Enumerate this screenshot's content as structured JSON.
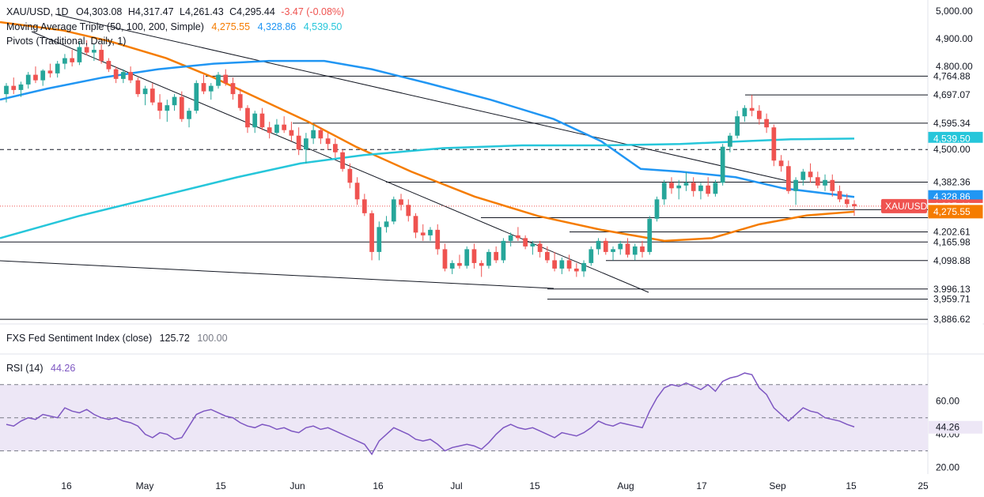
{
  "legend": {
    "symbol": "XAU/USD, 1D",
    "ohlc": {
      "O": "O4,303.08",
      "H": "H4,317.47",
      "L": "L4,261.43",
      "C": "C4,295.44",
      "change": "-3.47 (-0.08%)"
    },
    "ma_title": "Moving Average Triple (50, 100, 200, Simple)",
    "ma_values": [
      "4,275.55",
      "4,328.86",
      "4,539.50"
    ],
    "pivots": "Pivots (Traditional, Daily, 1)",
    "sentiment": "FXS Fed Sentiment Index (close)",
    "sentiment_values": [
      "125.72",
      "100.00"
    ],
    "rsi": "RSI (14)",
    "rsi_value": "44.26"
  },
  "colors": {
    "up": "#26a69a",
    "down": "#ef5350",
    "ma50": "#f57c00",
    "ma100": "#2196f3",
    "ma200": "#26c6da",
    "rsi": "#7e57c2",
    "rsi_band": "#ede7f6",
    "line": "#131722"
  },
  "price_axis": {
    "ticks": [
      "5,000.00",
      "4,900.00",
      "4,800.00"
    ],
    "levels": [
      {
        "label": "4,764.88",
        "value": 4764.88,
        "style": "box"
      },
      {
        "label": "4,697.07",
        "value": 4697.07,
        "style": "box"
      },
      {
        "label": "4,595.34",
        "value": 4595.34,
        "style": "box"
      },
      {
        "label": "4,539.50",
        "value": 4539.5,
        "style": "ma200"
      },
      {
        "label": "4,500.00",
        "value": 4500.0,
        "style": "box"
      },
      {
        "label": "4,382.36",
        "value": 4382.36,
        "style": "box"
      },
      {
        "label": "4,328.86",
        "value": 4328.86,
        "style": "ma100"
      },
      {
        "label": "4,295.44",
        "value": 4295.44,
        "style": "price"
      },
      {
        "label": "4,282.69",
        "value": 4282.69,
        "style": "box"
      },
      {
        "label": "4,275.55",
        "value": 4275.55,
        "style": "ma50"
      },
      {
        "label": "4,202.61",
        "value": 4202.61,
        "style": "box"
      },
      {
        "label": "4,165.98",
        "value": 4165.98,
        "style": "box"
      },
      {
        "label": "4,098.88",
        "value": 4098.88,
        "style": "box"
      },
      {
        "label": "3,996.13",
        "value": 3996.13,
        "style": "box"
      },
      {
        "label": "3,959.71",
        "value": 3959.71,
        "style": "box"
      },
      {
        "label": "3,886.62",
        "value": 3886.62,
        "style": "box"
      }
    ],
    "price_tag": "XAU/USD"
  },
  "rsi_axis": {
    "ticks": [
      "60.00",
      "40.00",
      "20.00"
    ],
    "value_tag": "44.26"
  },
  "time_axis": [
    "16",
    "May",
    "15",
    "Jun",
    "16",
    "Jul",
    "15",
    "Aug",
    "17",
    "Sep",
    "15",
    "25"
  ],
  "chart_data": {
    "type": "candlestick",
    "symbol": "XAU/USD",
    "timeframe": "1D",
    "ylim": [
      3870,
      5040
    ],
    "last": {
      "open": 4303.08,
      "high": 4317.47,
      "low": 4261.43,
      "close": 4295.44,
      "change": -3.47,
      "change_pct": -0.08
    },
    "moving_averages": [
      {
        "name": "50",
        "last": 4275.55
      },
      {
        "name": "100",
        "last": 4328.86
      },
      {
        "name": "200",
        "last": 4539.5
      }
    ],
    "horizontal_levels": [
      4764.88,
      4697.07,
      4595.34,
      4500.0,
      4382.36,
      4282.69,
      4202.61,
      4165.98,
      4098.88,
      3996.13,
      3959.71,
      3886.62
    ],
    "ohlc": [
      [
        4700,
        4740,
        4670,
        4730
      ],
      [
        4730,
        4760,
        4700,
        4715
      ],
      [
        4715,
        4745,
        4690,
        4735
      ],
      [
        4735,
        4780,
        4720,
        4770
      ],
      [
        4770,
        4800,
        4740,
        4750
      ],
      [
        4750,
        4790,
        4730,
        4785
      ],
      [
        4785,
        4810,
        4760,
        4775
      ],
      [
        4775,
        4820,
        4760,
        4810
      ],
      [
        4810,
        4845,
        4790,
        4830
      ],
      [
        4830,
        4860,
        4800,
        4815
      ],
      [
        4815,
        4890,
        4805,
        4870
      ],
      [
        4870,
        4895,
        4840,
        4850
      ],
      [
        4850,
        4880,
        4820,
        4860
      ],
      [
        4860,
        4880,
        4810,
        4820
      ],
      [
        4820,
        4830,
        4780,
        4790
      ],
      [
        4790,
        4800,
        4740,
        4755
      ],
      [
        4755,
        4790,
        4740,
        4780
      ],
      [
        4780,
        4800,
        4740,
        4750
      ],
      [
        4750,
        4760,
        4690,
        4700
      ],
      [
        4700,
        4730,
        4660,
        4720
      ],
      [
        4720,
        4740,
        4660,
        4670
      ],
      [
        4670,
        4700,
        4610,
        4640
      ],
      [
        4640,
        4680,
        4600,
        4660
      ],
      [
        4660,
        4700,
        4640,
        4690
      ],
      [
        4690,
        4710,
        4600,
        4610
      ],
      [
        4610,
        4650,
        4580,
        4640
      ],
      [
        4640,
        4750,
        4630,
        4740
      ],
      [
        4740,
        4770,
        4700,
        4710
      ],
      [
        4710,
        4740,
        4680,
        4730
      ],
      [
        4730,
        4780,
        4720,
        4770
      ],
      [
        4770,
        4790,
        4730,
        4740
      ],
      [
        4740,
        4760,
        4680,
        4700
      ],
      [
        4700,
        4720,
        4640,
        4650
      ],
      [
        4650,
        4660,
        4560,
        4580
      ],
      [
        4580,
        4640,
        4560,
        4630
      ],
      [
        4630,
        4650,
        4570,
        4580
      ],
      [
        4580,
        4600,
        4540,
        4560
      ],
      [
        4560,
        4610,
        4550,
        4590
      ],
      [
        4590,
        4620,
        4560,
        4570
      ],
      [
        4570,
        4600,
        4530,
        4550
      ],
      [
        4550,
        4580,
        4480,
        4500
      ],
      [
        4500,
        4560,
        4450,
        4540
      ],
      [
        4540,
        4590,
        4520,
        4570
      ],
      [
        4570,
        4580,
        4520,
        4540
      ],
      [
        4540,
        4560,
        4500,
        4520
      ],
      [
        4520,
        4540,
        4470,
        4490
      ],
      [
        4490,
        4500,
        4420,
        4430
      ],
      [
        4430,
        4450,
        4360,
        4380
      ],
      [
        4380,
        4400,
        4300,
        4320
      ],
      [
        4320,
        4340,
        4260,
        4270
      ],
      [
        4270,
        4280,
        4100,
        4130
      ],
      [
        4130,
        4240,
        4100,
        4220
      ],
      [
        4220,
        4260,
        4200,
        4240
      ],
      [
        4240,
        4330,
        4230,
        4320
      ],
      [
        4320,
        4340,
        4280,
        4300
      ],
      [
        4300,
        4320,
        4240,
        4260
      ],
      [
        4260,
        4270,
        4180,
        4200
      ],
      [
        4200,
        4230,
        4170,
        4190
      ],
      [
        4190,
        4220,
        4170,
        4210
      ],
      [
        4210,
        4230,
        4120,
        4140
      ],
      [
        4140,
        4160,
        4060,
        4070
      ],
      [
        4070,
        4100,
        4050,
        4090
      ],
      [
        4090,
        4120,
        4070,
        4080
      ],
      [
        4080,
        4150,
        4070,
        4140
      ],
      [
        4140,
        4160,
        4070,
        4090
      ],
      [
        4090,
        4100,
        4040,
        4080
      ],
      [
        4080,
        4140,
        4070,
        4130
      ],
      [
        4130,
        4150,
        4090,
        4100
      ],
      [
        4100,
        4180,
        4090,
        4170
      ],
      [
        4170,
        4200,
        4150,
        4190
      ],
      [
        4190,
        4220,
        4170,
        4180
      ],
      [
        4180,
        4190,
        4140,
        4150
      ],
      [
        4150,
        4170,
        4120,
        4160
      ],
      [
        4160,
        4170,
        4110,
        4130
      ],
      [
        4130,
        4150,
        4090,
        4100
      ],
      [
        4100,
        4130,
        4060,
        4070
      ],
      [
        4070,
        4110,
        4050,
        4100
      ],
      [
        4100,
        4120,
        4060,
        4070
      ],
      [
        4070,
        4090,
        4040,
        4060
      ],
      [
        4060,
        4100,
        4040,
        4090
      ],
      [
        4090,
        4150,
        4080,
        4140
      ],
      [
        4140,
        4180,
        4120,
        4170
      ],
      [
        4170,
        4180,
        4120,
        4130
      ],
      [
        4130,
        4150,
        4100,
        4140
      ],
      [
        4140,
        4170,
        4120,
        4160
      ],
      [
        4160,
        4180,
        4110,
        4120
      ],
      [
        4120,
        4160,
        4100,
        4150
      ],
      [
        4150,
        4170,
        4110,
        4130
      ],
      [
        4130,
        4260,
        4120,
        4250
      ],
      [
        4250,
        4330,
        4240,
        4320
      ],
      [
        4320,
        4390,
        4300,
        4380
      ],
      [
        4380,
        4400,
        4340,
        4360
      ],
      [
        4360,
        4390,
        4320,
        4370
      ],
      [
        4370,
        4420,
        4350,
        4380
      ],
      [
        4380,
        4400,
        4330,
        4350
      ],
      [
        4350,
        4380,
        4320,
        4370
      ],
      [
        4370,
        4400,
        4330,
        4340
      ],
      [
        4340,
        4390,
        4330,
        4380
      ],
      [
        4380,
        4520,
        4370,
        4510
      ],
      [
        4510,
        4560,
        4490,
        4550
      ],
      [
        4550,
        4640,
        4540,
        4620
      ],
      [
        4620,
        4660,
        4600,
        4650
      ],
      [
        4650,
        4697,
        4620,
        4640
      ],
      [
        4640,
        4660,
        4590,
        4610
      ],
      [
        4610,
        4630,
        4560,
        4580
      ],
      [
        4580,
        4590,
        4440,
        4460
      ],
      [
        4460,
        4480,
        4420,
        4440
      ],
      [
        4440,
        4460,
        4340,
        4350
      ],
      [
        4350,
        4400,
        4300,
        4390
      ],
      [
        4390,
        4430,
        4370,
        4420
      ],
      [
        4420,
        4450,
        4380,
        4400
      ],
      [
        4400,
        4420,
        4360,
        4370
      ],
      [
        4370,
        4410,
        4350,
        4390
      ],
      [
        4390,
        4410,
        4330,
        4350
      ],
      [
        4350,
        4370,
        4310,
        4320
      ],
      [
        4320,
        4340,
        4290,
        4303
      ],
      [
        4303,
        4317,
        4261,
        4295
      ]
    ],
    "rsi": {
      "name": "RSI (14)",
      "last": 44.26,
      "bands": [
        70,
        50,
        30
      ]
    },
    "sentiment": {
      "name": "FXS Fed Sentiment Index (close)",
      "values": [
        125.72,
        100.0
      ]
    }
  }
}
